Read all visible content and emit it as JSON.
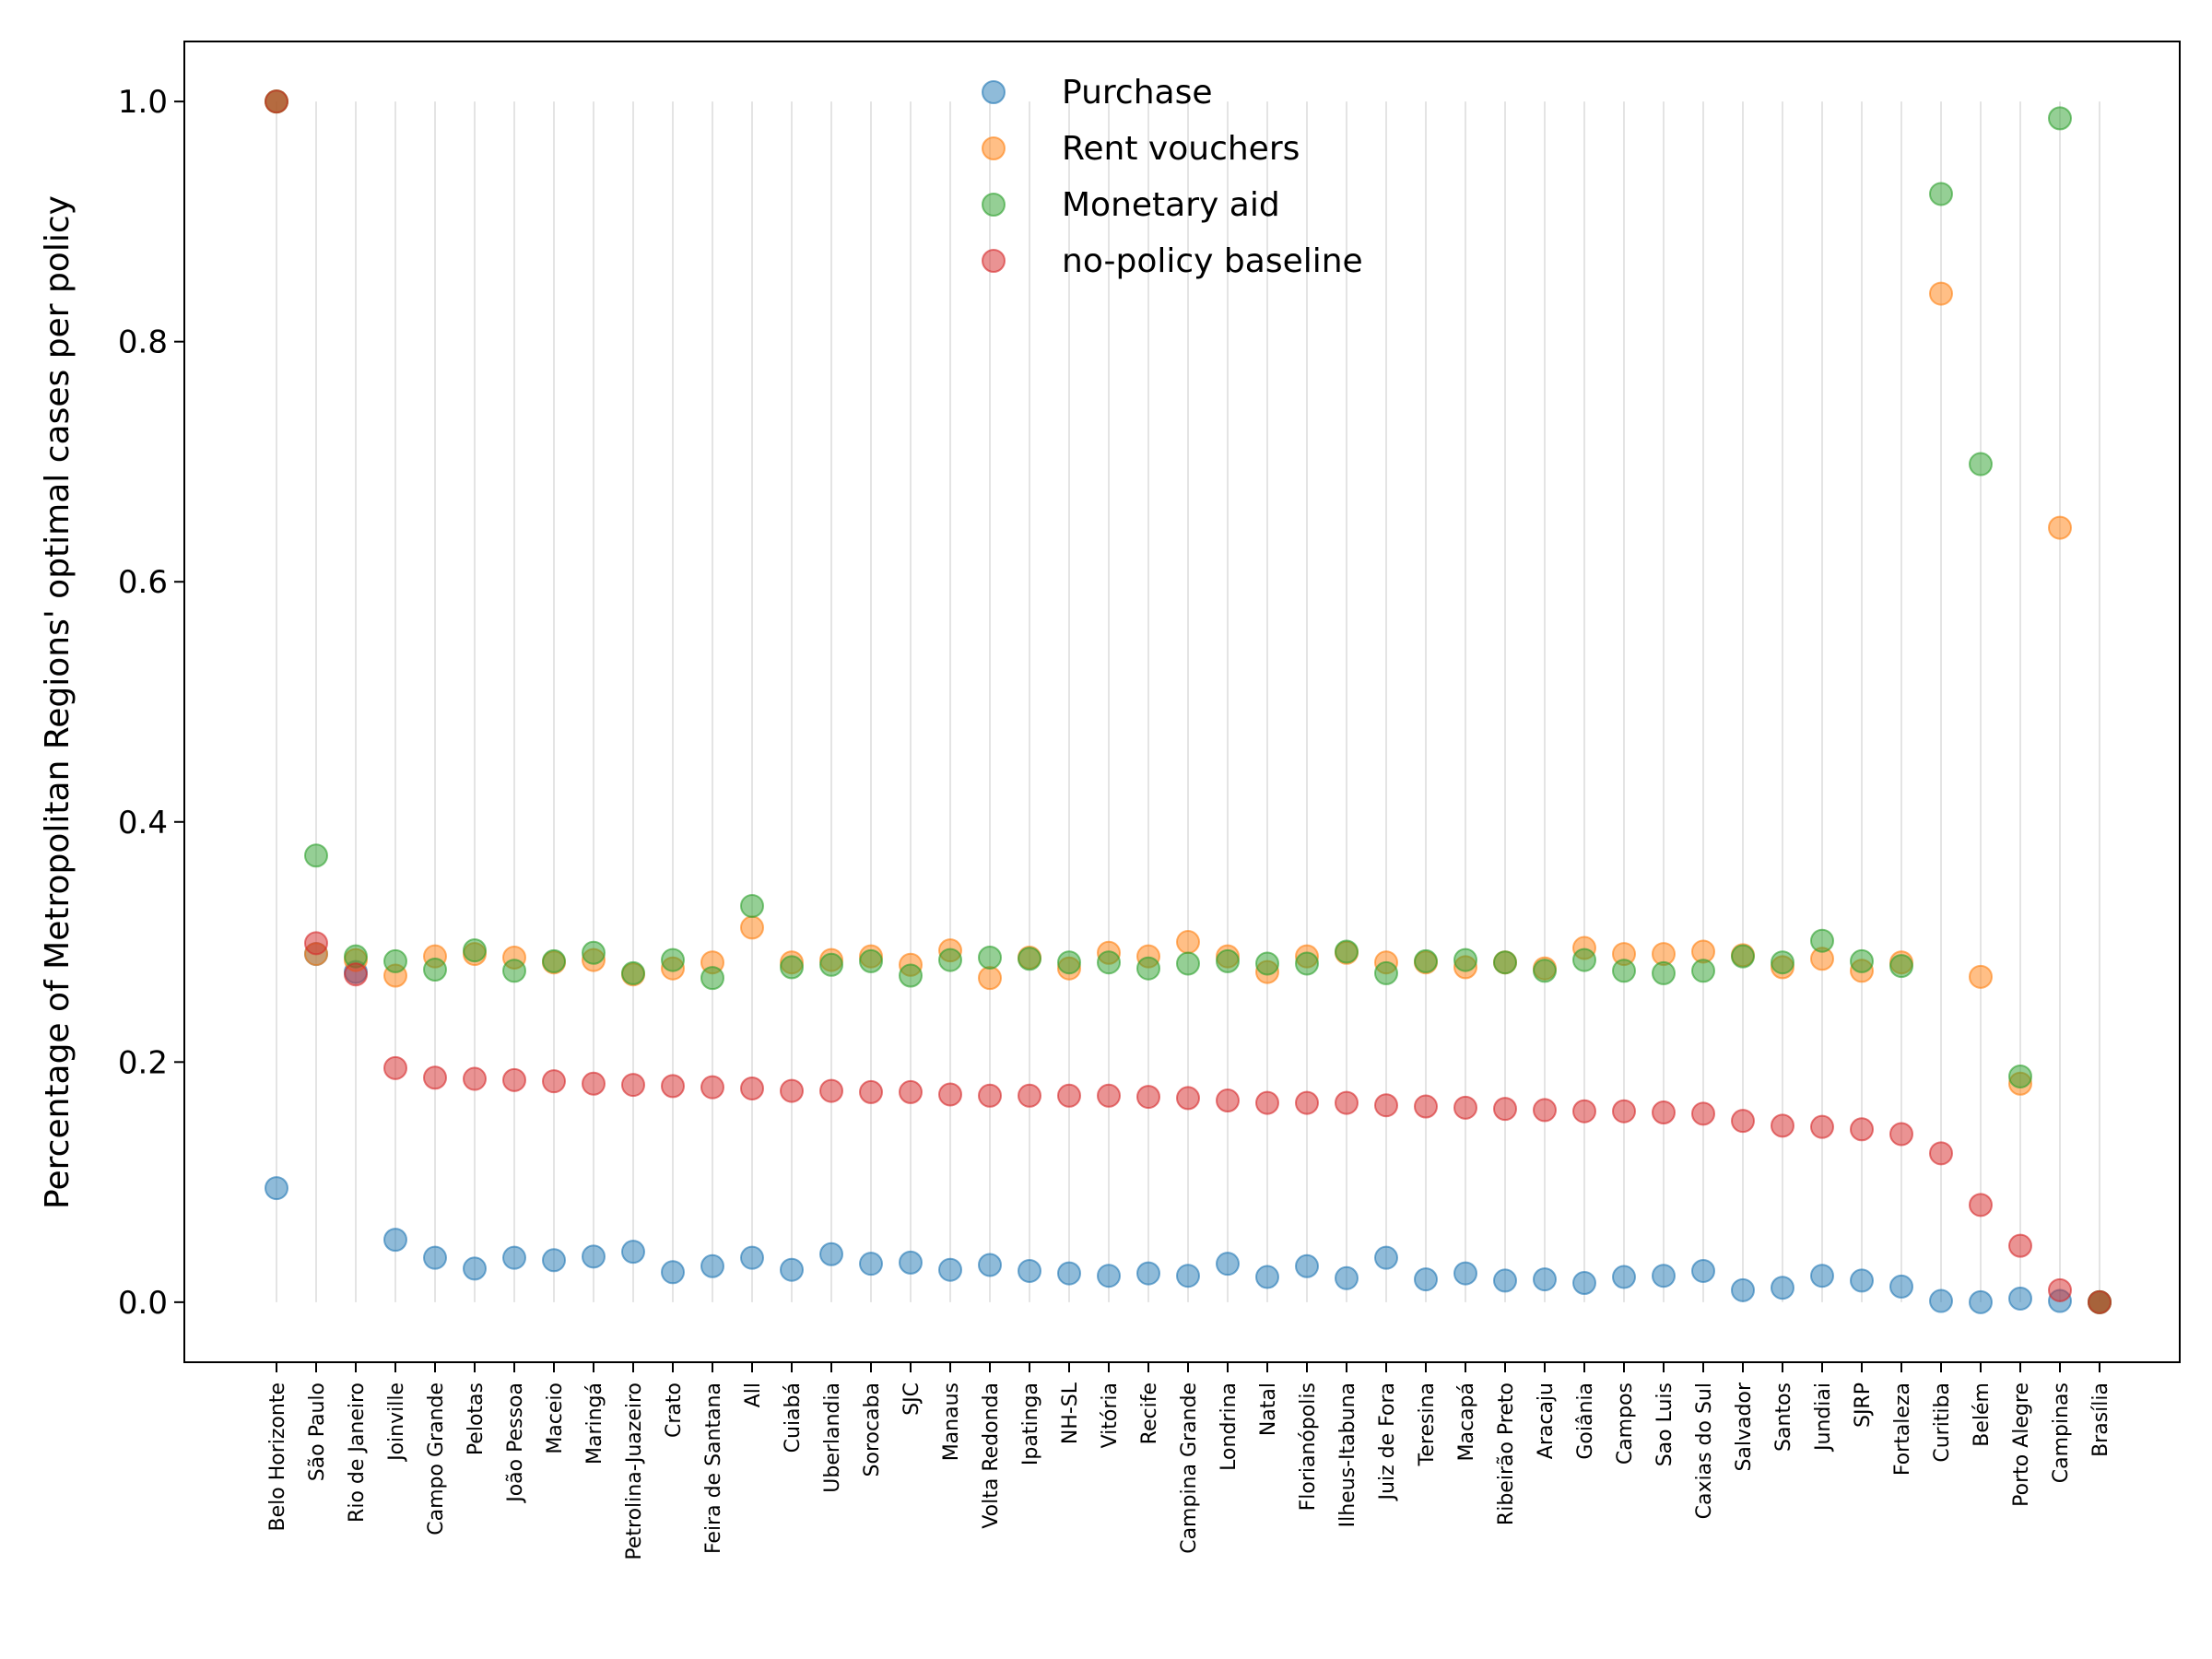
{
  "chart_data": {
    "type": "scatter",
    "title": "",
    "xlabel": "",
    "ylabel": "Percentage of Metropolitan Regions' optimal cases per policy",
    "ylim": [
      -0.05,
      1.05
    ],
    "yticks": [
      "0.0",
      "0.2",
      "0.4",
      "0.6",
      "0.8",
      "1.0"
    ],
    "grid": "vertical lines at each category",
    "legend_position": "top-center",
    "categories": [
      "Belo Horizonte",
      "São Paulo",
      "Rio de Janeiro",
      "Joinville",
      "Campo Grande",
      "Pelotas",
      "João Pessoa",
      "Maceio",
      "Maringá",
      "Petrolina-Juazeiro",
      "Crato",
      "Feira de Santana",
      "All",
      "Cuiabá",
      "Uberlandia",
      "Sorocaba",
      "SJC",
      "Manaus",
      "Volta Redonda",
      "Ipatinga",
      "NH-SL",
      "Vitória",
      "Recife",
      "Campina Grande",
      "Londrina",
      "Natal",
      "Florianópolis",
      "Ilheus-Itabuna",
      "Juiz de Fora",
      "Teresina",
      "Macapá",
      "Ribeirão Preto",
      "Aracaju",
      "Goiânia",
      "Campos",
      "Sao Luis",
      "Caxias do Sul",
      "Salvador",
      "Santos",
      "Jundiai",
      "SJRP",
      "Fortaleza",
      "Curitiba",
      "Belém",
      "Porto Alegre",
      "Campinas",
      "Brasília"
    ],
    "series": [
      {
        "name": "Purchase",
        "color": "#1f77b4",
        "values": [
          0.095,
          0.29,
          0.275,
          0.052,
          0.037,
          0.028,
          0.037,
          0.035,
          0.038,
          0.042,
          0.025,
          0.03,
          0.037,
          0.027,
          0.04,
          0.032,
          0.033,
          0.027,
          0.031,
          0.026,
          0.024,
          0.022,
          0.024,
          0.022,
          0.032,
          0.021,
          0.03,
          0.02,
          0.037,
          0.019,
          0.024,
          0.018,
          0.019,
          0.016,
          0.021,
          0.022,
          0.026,
          0.01,
          0.012,
          0.022,
          0.018,
          0.013,
          0.001,
          0.0,
          0.003,
          0.001,
          0.0
        ]
      },
      {
        "name": "Rent vouchers",
        "color": "#ff7f0e",
        "values": [
          1.0,
          0.29,
          0.285,
          0.272,
          0.288,
          0.29,
          0.287,
          0.283,
          0.285,
          0.273,
          0.278,
          0.283,
          0.312,
          0.283,
          0.285,
          0.288,
          0.281,
          0.293,
          0.27,
          0.287,
          0.278,
          0.291,
          0.288,
          0.3,
          0.288,
          0.275,
          0.288,
          0.291,
          0.283,
          0.283,
          0.279,
          0.283,
          0.278,
          0.295,
          0.29,
          0.29,
          0.292,
          0.289,
          0.279,
          0.286,
          0.276,
          0.283,
          0.84,
          0.271,
          0.182,
          0.645,
          0.0
        ]
      },
      {
        "name": "Monetary aid",
        "color": "#2ca02c",
        "values": [
          1.0,
          0.372,
          0.288,
          0.284,
          0.277,
          0.293,
          0.276,
          0.284,
          0.291,
          0.274,
          0.285,
          0.27,
          0.33,
          0.279,
          0.281,
          0.284,
          0.272,
          0.285,
          0.287,
          0.286,
          0.283,
          0.283,
          0.278,
          0.282,
          0.284,
          0.282,
          0.282,
          0.292,
          0.274,
          0.284,
          0.285,
          0.283,
          0.276,
          0.285,
          0.276,
          0.274,
          0.276,
          0.288,
          0.283,
          0.301,
          0.284,
          0.28,
          0.923,
          0.698,
          0.188,
          0.986,
          0.0
        ]
      },
      {
        "name": "no-policy baseline",
        "color": "#d62728",
        "values": [
          1.0,
          0.299,
          0.273,
          0.195,
          0.187,
          0.186,
          0.185,
          0.184,
          0.182,
          0.181,
          0.18,
          0.179,
          0.178,
          0.176,
          0.176,
          0.175,
          0.175,
          0.173,
          0.172,
          0.172,
          0.172,
          0.172,
          0.171,
          0.17,
          0.168,
          0.166,
          0.166,
          0.166,
          0.164,
          0.163,
          0.162,
          0.161,
          0.16,
          0.159,
          0.159,
          0.158,
          0.157,
          0.151,
          0.147,
          0.146,
          0.144,
          0.14,
          0.124,
          0.081,
          0.047,
          0.01,
          0.0
        ]
      }
    ]
  }
}
